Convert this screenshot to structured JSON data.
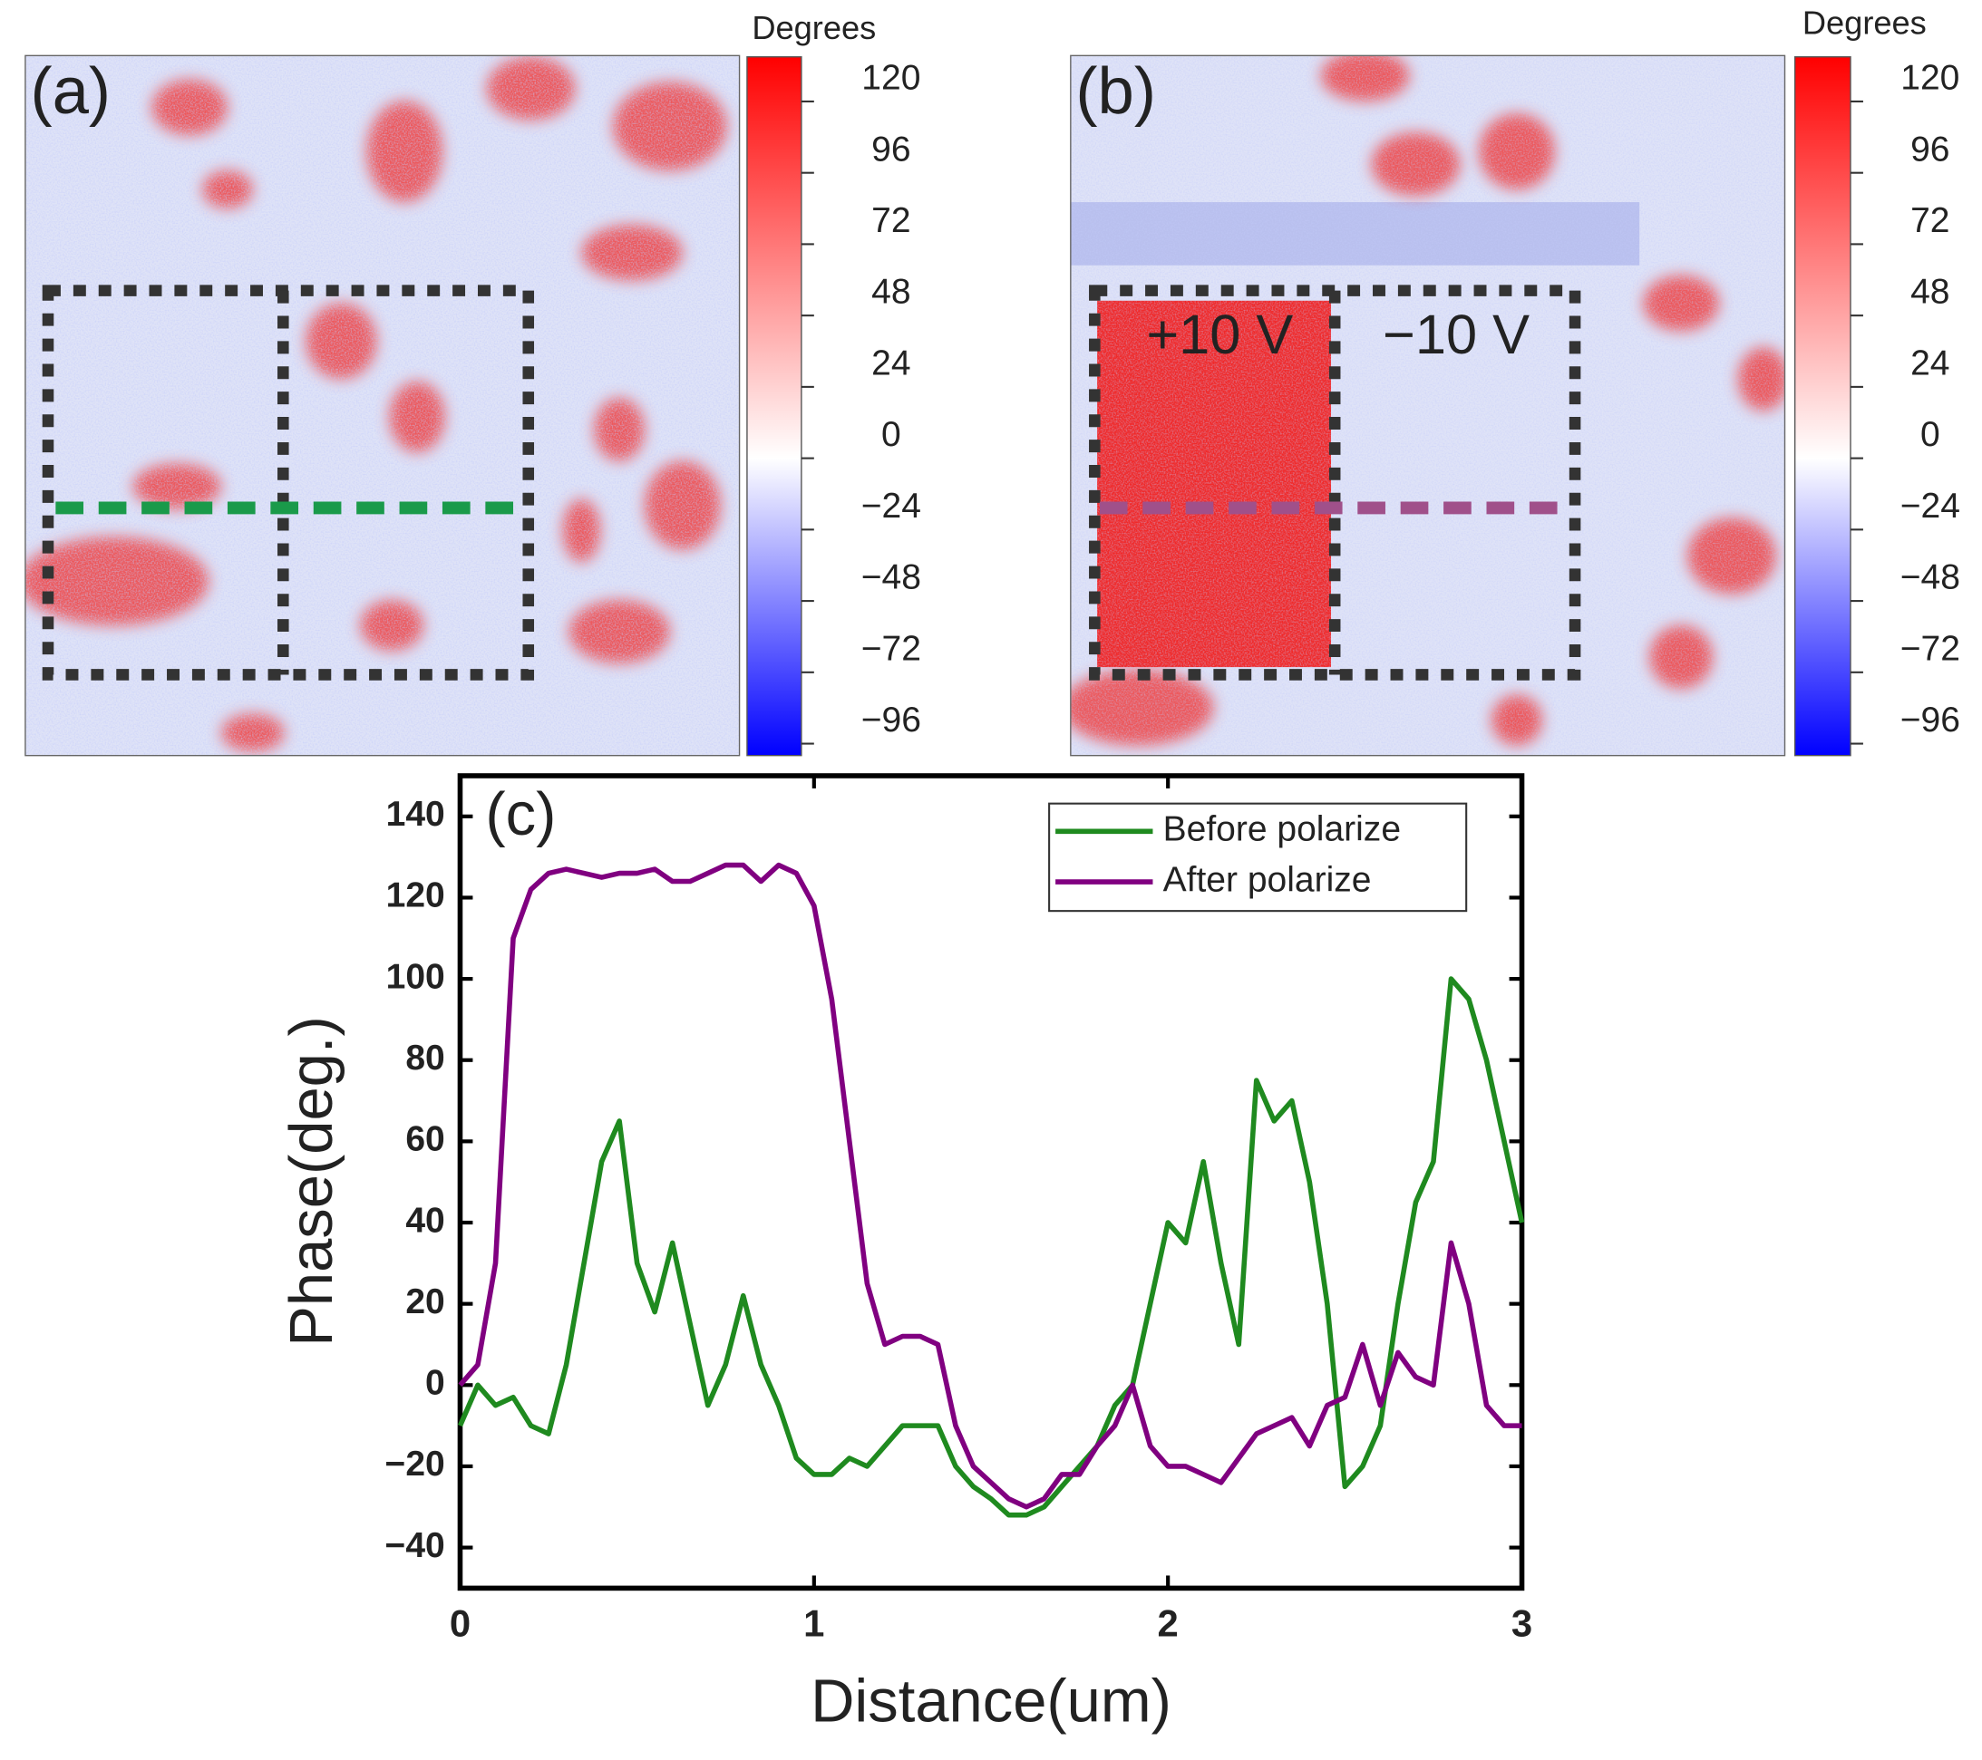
{
  "panels": [
    {
      "label": "(a)",
      "colorbar": {
        "title": "Degrees",
        "lim": [
          -100,
          135
        ],
        "colors": [
          "#0000ff",
          "#ffffff",
          "#ff0000"
        ],
        "ticks": [
          120,
          96,
          72,
          48,
          24,
          0,
          {
            "value": -24,
            "label": "−24"
          },
          {
            "value": -48,
            "label": "−48"
          },
          {
            "value": -72,
            "label": "−72"
          },
          {
            "value": -96,
            "label": "−96"
          }
        ]
      }
    },
    {
      "label": "(b)",
      "annotations": [
        "+10 V",
        "−10 V"
      ],
      "colorbar": {
        "title": "Degrees",
        "lim": [
          -100,
          135
        ],
        "colors": [
          "#0000ff",
          "#ffffff",
          "#ff0000"
        ],
        "ticks": [
          120,
          96,
          72,
          48,
          24,
          0,
          {
            "value": -24,
            "label": "−24"
          },
          {
            "value": -48,
            "label": "−48"
          },
          {
            "value": -72,
            "label": "−72"
          },
          {
            "value": -96,
            "label": "−96"
          }
        ]
      }
    }
  ],
  "chart_data": {
    "type": "line",
    "panel_label": "(c)",
    "x_label": "Distance(um)",
    "y_label": "Phase(deg.)",
    "xlim": [
      0,
      3
    ],
    "xticks": [
      0,
      1,
      2,
      3
    ],
    "ylim": [
      -50,
      150
    ],
    "yticks": [
      {
        "value": -40,
        "label": "−40"
      },
      {
        "value": -20,
        "label": "−20"
      },
      0,
      20,
      40,
      60,
      80,
      100,
      120,
      140
    ],
    "legend": "top-right",
    "x": [
      0,
      0.05,
      0.1,
      0.15,
      0.2,
      0.25,
      0.3,
      0.35,
      0.4,
      0.45,
      0.5,
      0.55,
      0.6,
      0.65,
      0.7,
      0.75,
      0.8,
      0.85,
      0.9,
      0.95,
      1,
      1.05,
      1.1,
      1.15,
      1.2,
      1.25,
      1.3,
      1.35,
      1.4,
      1.45,
      1.5,
      1.55,
      1.6,
      1.65,
      1.7,
      1.75,
      1.8,
      1.85,
      1.9,
      1.95,
      2,
      2.05,
      2.1,
      2.15,
      2.2,
      2.25,
      2.3,
      2.35,
      2.4,
      2.45,
      2.5,
      2.55,
      2.6,
      2.65,
      2.7,
      2.75,
      2.8,
      2.85,
      2.9,
      2.95,
      3
    ],
    "series": [
      {
        "name": "Before polarize",
        "color": "#1f8a1f",
        "values": [
          -10,
          0,
          -5,
          -3,
          -10,
          -12,
          5,
          30,
          55,
          65,
          30,
          18,
          35,
          15,
          -5,
          5,
          22,
          5,
          -5,
          -18,
          -22,
          -22,
          -18,
          -20,
          -15,
          -10,
          -10,
          -10,
          -20,
          -25,
          -28,
          -32,
          -32,
          -30,
          -25,
          -20,
          -15,
          -5,
          0,
          20,
          40,
          35,
          55,
          30,
          10,
          75,
          65,
          70,
          50,
          20,
          -25,
          -20,
          -10,
          20,
          45,
          55,
          100,
          95,
          80,
          60,
          40
        ]
      },
      {
        "name": "After polarize",
        "color": "#800080",
        "values": [
          0,
          5,
          30,
          110,
          122,
          126,
          127,
          126,
          125,
          126,
          126,
          127,
          124,
          124,
          126,
          128,
          128,
          124,
          128,
          126,
          118,
          95,
          60,
          25,
          10,
          12,
          12,
          10,
          -10,
          -20,
          -24,
          -28,
          -30,
          -28,
          -22,
          -22,
          -15,
          -10,
          0,
          -15,
          -20,
          -20,
          -22,
          -24,
          -18,
          -12,
          -10,
          -8,
          -15,
          -5,
          -3,
          10,
          -5,
          8,
          2,
          0,
          35,
          20,
          -5,
          -10,
          -10
        ]
      }
    ]
  }
}
